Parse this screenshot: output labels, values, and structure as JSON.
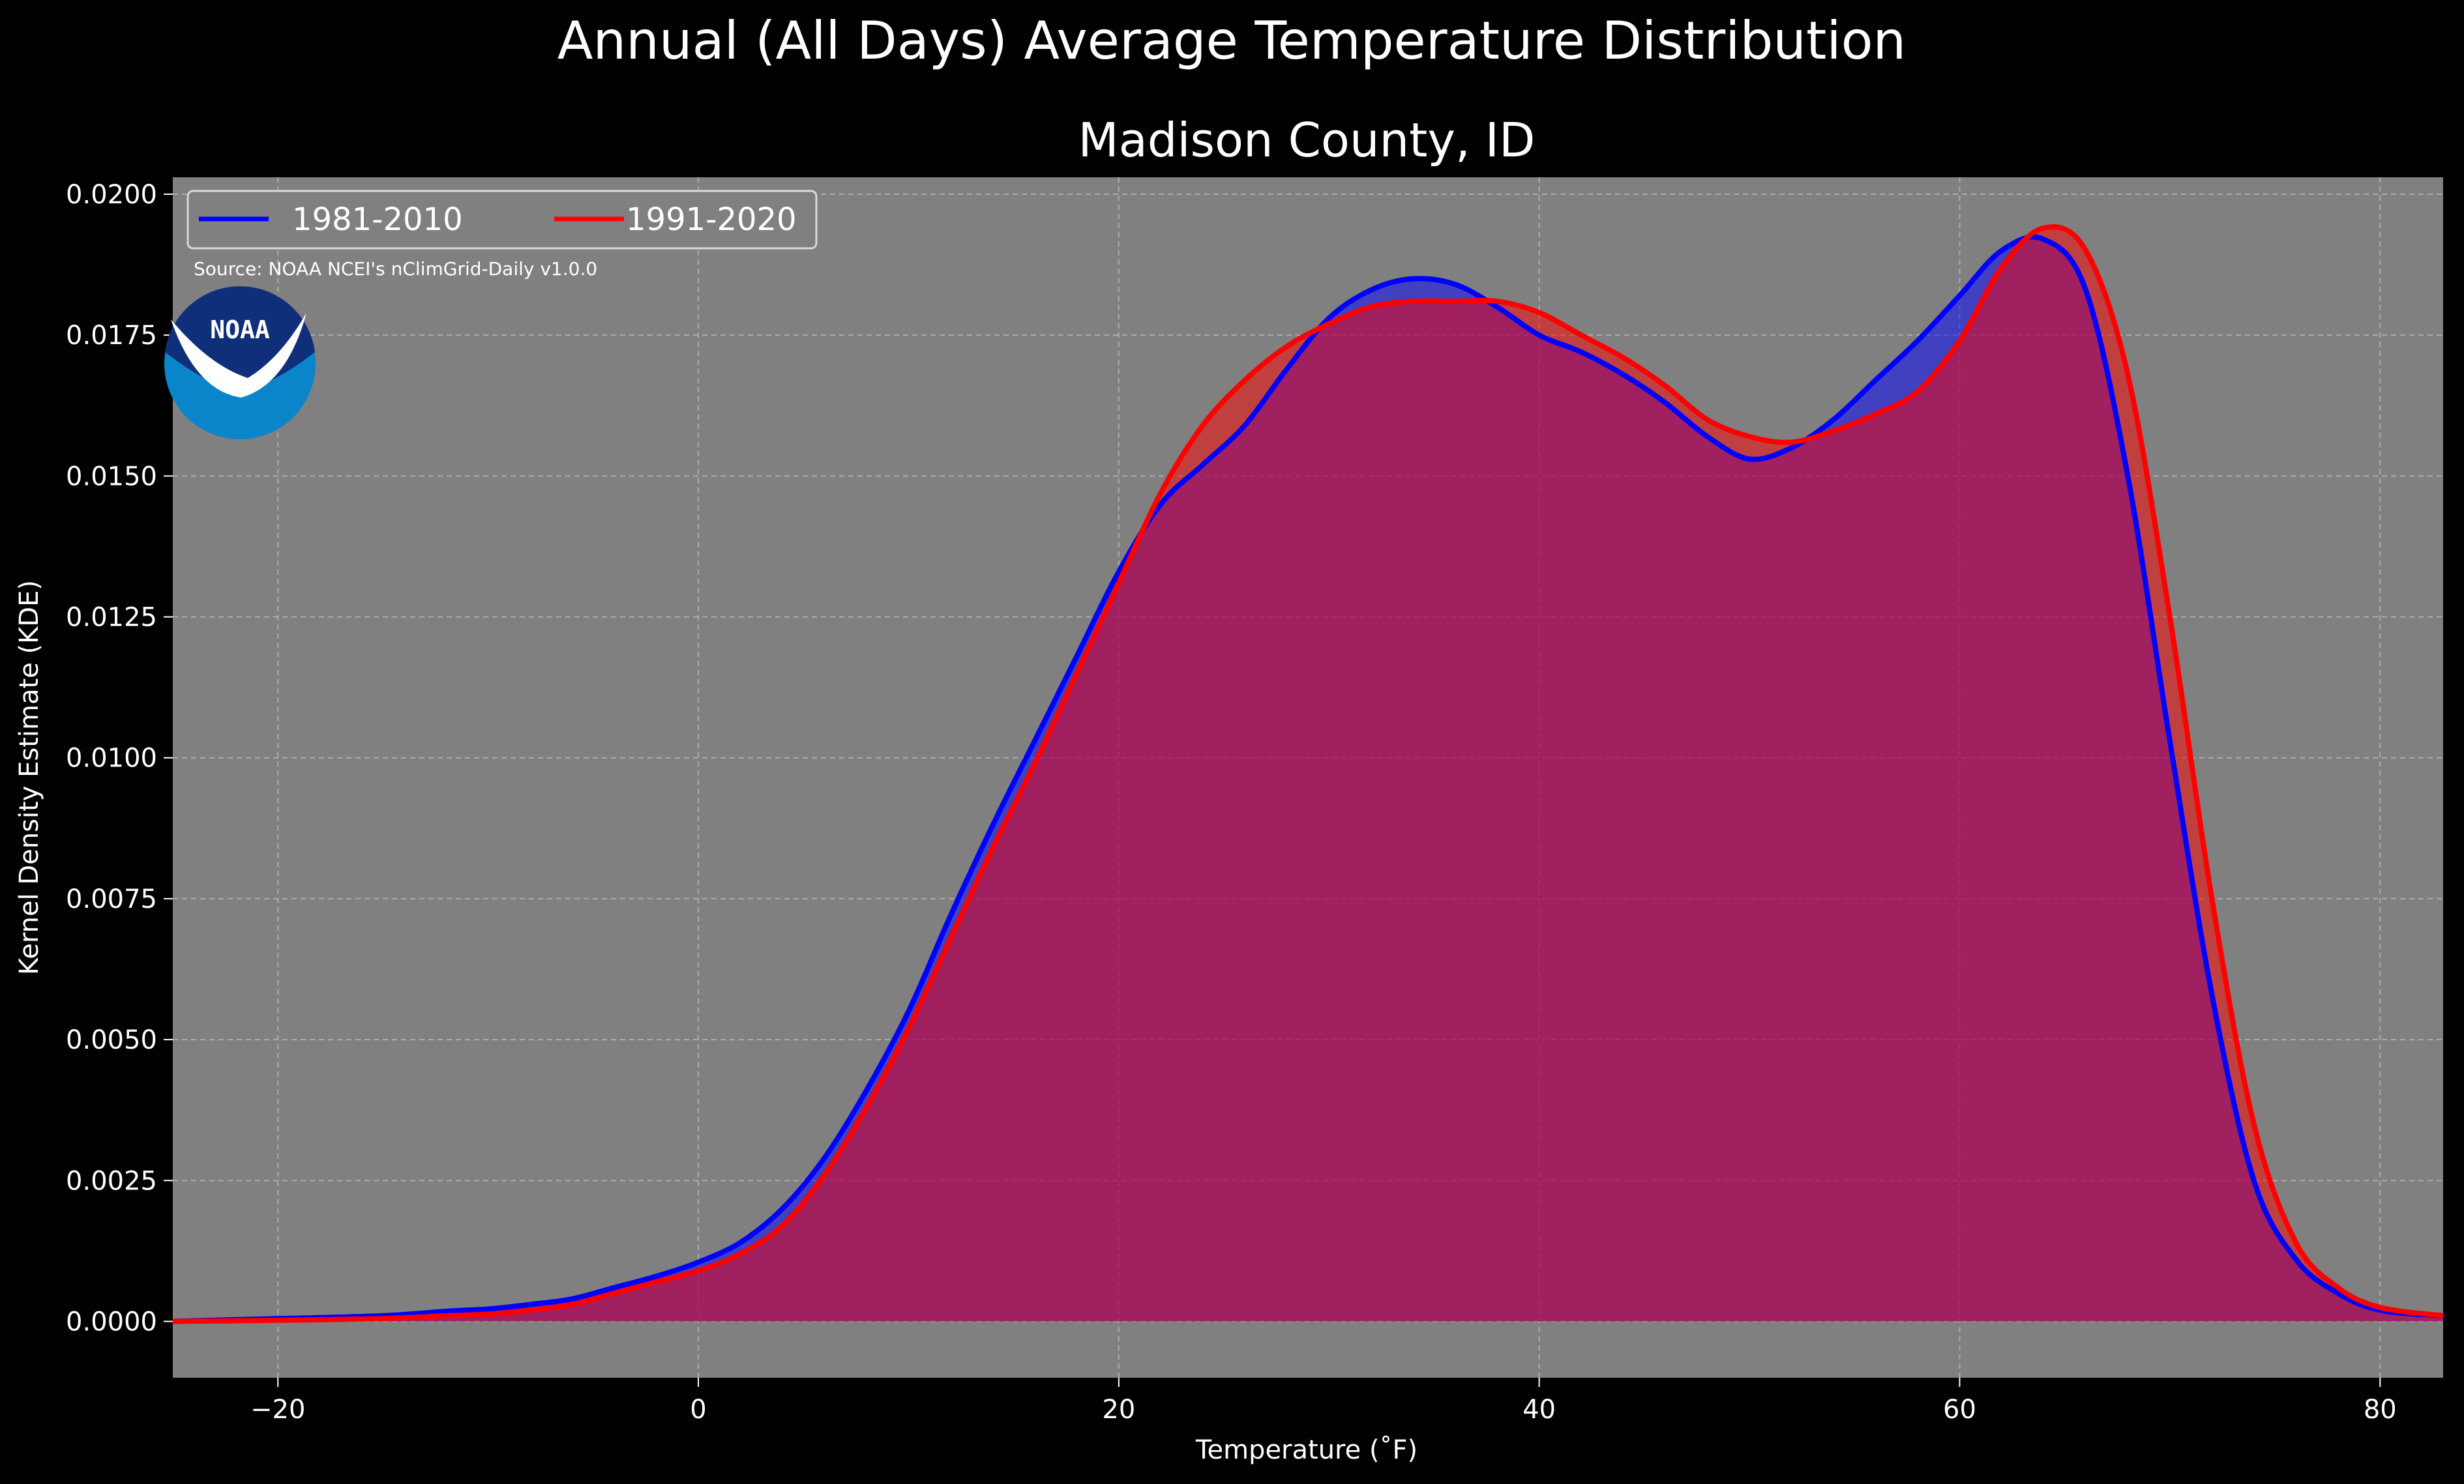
{
  "chart_data": {
    "type": "area",
    "title": "Annual (All Days) Average Temperature Distribution",
    "subtitle": "Madison County, ID",
    "xlabel": "Temperature (˚F)",
    "ylabel": "Kernel Density Estimate (KDE)",
    "xlim": [
      -25,
      83
    ],
    "ylim": [
      -0.001,
      0.0203
    ],
    "x_ticks": [
      -20,
      0,
      20,
      40,
      60,
      80
    ],
    "x_tick_labels": [
      "−20",
      "0",
      "20",
      "40",
      "60",
      "80"
    ],
    "y_ticks": [
      0,
      0.0025,
      0.005,
      0.0075,
      0.01,
      0.0125,
      0.015,
      0.0175,
      0.02
    ],
    "y_tick_labels": [
      "0.0000",
      "0.0025",
      "0.0050",
      "0.0075",
      "0.0100",
      "0.0125",
      "0.0150",
      "0.0175",
      "0.0200"
    ],
    "grid": true,
    "legend_position": "top-left",
    "source_note": "Source: NOAA NCEI's nClimGrid-Daily v1.0.0",
    "logo_text": "NOAA",
    "colors": {
      "background": "#000000",
      "plot_background": "#808080",
      "grid": "#bfbfbf",
      "series_1": "#0000ff",
      "series_2": "#ff0000",
      "logo_outer": "#0a85c9",
      "logo_inner": "#102f7a"
    },
    "series": [
      {
        "name": "1981-2010",
        "color": "#0000ff",
        "x": [
          -25,
          -20,
          -15,
          -12,
          -10,
          -8,
          -6,
          -4,
          -2,
          0,
          2,
          4,
          6,
          8,
          10,
          12,
          14,
          16,
          18,
          20,
          22,
          24,
          26,
          28,
          30,
          32,
          34,
          36,
          38,
          40,
          42,
          44,
          46,
          48,
          50,
          52,
          54,
          56,
          58,
          60,
          62,
          64,
          66,
          68,
          70,
          72,
          74,
          76,
          78,
          80,
          83
        ],
        "values": [
          0.0,
          5e-05,
          0.0001,
          0.00018,
          0.00022,
          0.0003,
          0.0004,
          0.0006,
          0.0008,
          0.00105,
          0.0014,
          0.002,
          0.0029,
          0.0041,
          0.0055,
          0.0072,
          0.0088,
          0.0103,
          0.0118,
          0.0133,
          0.0145,
          0.0152,
          0.0159,
          0.0169,
          0.0178,
          0.0183,
          0.0185,
          0.0184,
          0.018,
          0.0175,
          0.0172,
          0.0168,
          0.0163,
          0.0157,
          0.0153,
          0.0155,
          0.016,
          0.0167,
          0.0174,
          0.0182,
          0.019,
          0.0192,
          0.0183,
          0.015,
          0.0103,
          0.0058,
          0.0025,
          0.0011,
          0.0005,
          0.0002,
          0.0001
        ]
      },
      {
        "name": "1991-2020",
        "color": "#ff0000",
        "x": [
          -25,
          -20,
          -15,
          -12,
          -10,
          -8,
          -6,
          -4,
          -2,
          0,
          2,
          4,
          6,
          8,
          10,
          12,
          14,
          16,
          18,
          20,
          22,
          24,
          26,
          28,
          30,
          32,
          34,
          36,
          38,
          40,
          42,
          44,
          46,
          48,
          50,
          52,
          54,
          56,
          58,
          60,
          62,
          64,
          66,
          68,
          70,
          72,
          74,
          76,
          78,
          80,
          83
        ],
        "values": [
          0.0,
          2e-05,
          5e-05,
          0.0001,
          0.00013,
          0.0002,
          0.0003,
          0.0005,
          0.0007,
          0.0009,
          0.0012,
          0.0017,
          0.0026,
          0.0038,
          0.0052,
          0.0068,
          0.0084,
          0.0099,
          0.0115,
          0.0131,
          0.0147,
          0.0159,
          0.0167,
          0.0173,
          0.0177,
          0.018,
          0.0181,
          0.0181,
          0.0181,
          0.0179,
          0.0175,
          0.0171,
          0.0166,
          0.016,
          0.0157,
          0.0156,
          0.0158,
          0.0161,
          0.0165,
          0.0174,
          0.0187,
          0.0194,
          0.019,
          0.0168,
          0.0125,
          0.0075,
          0.0035,
          0.0014,
          0.0006,
          0.00025,
          0.0001
        ]
      }
    ]
  }
}
